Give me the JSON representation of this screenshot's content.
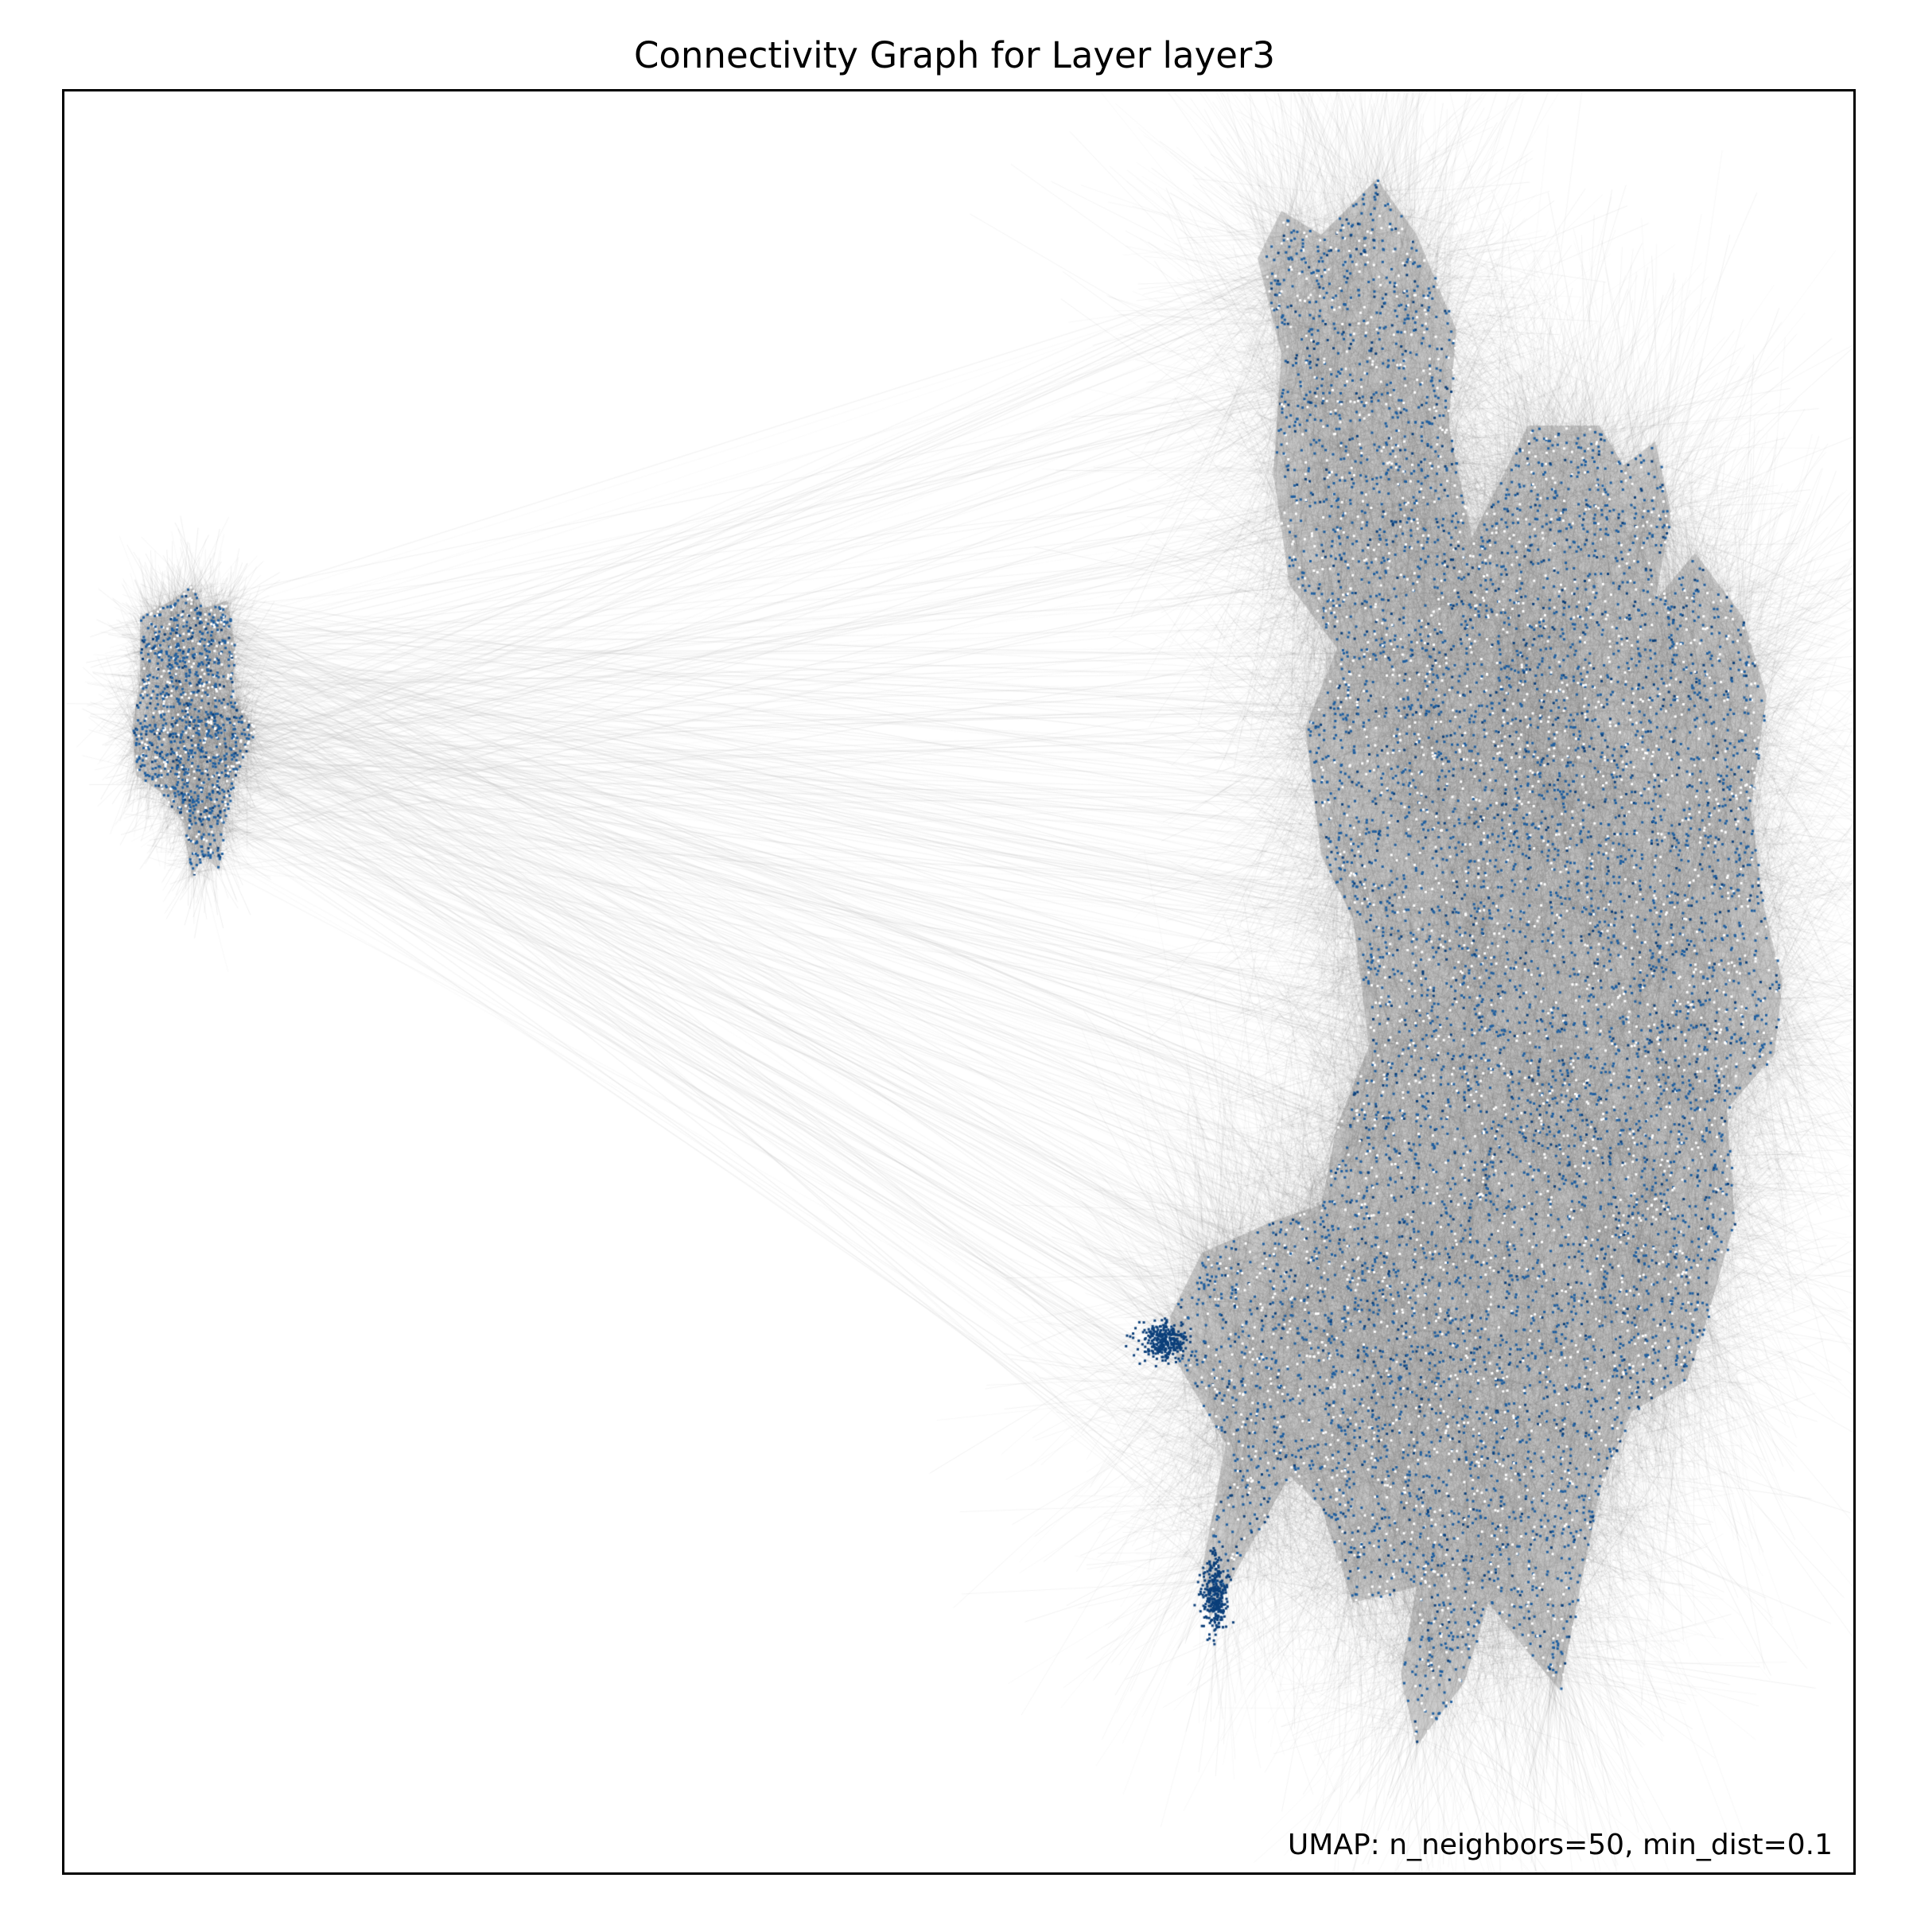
{
  "chart_data": {
    "type": "scatter",
    "title": "Connectivity Graph for Layer layer3",
    "annotation": "UMAP: n_neighbors=50, min_dist=0.1",
    "xlabel": "",
    "ylabel": "",
    "axes_ticks": false,
    "grid": false,
    "legend": "none",
    "colors": {
      "points": "#1f5fa0",
      "points_dark": "#0b3f7a",
      "edges_dense": "#5a5a5a",
      "edges_sparse": "#c8c8c8"
    },
    "clusters": [
      {
        "id": "small-left",
        "center": [
          -7.4,
          0.9
        ],
        "extent_x": [
          -7.8,
          -7.0
        ],
        "extent_y": [
          0.2,
          1.5
        ]
      },
      {
        "id": "large-right",
        "center": [
          5.6,
          0.6
        ],
        "extent_x": [
          4.3,
          6.8
        ],
        "extent_y": [
          -3.2,
          3.9
        ]
      }
    ]
  }
}
